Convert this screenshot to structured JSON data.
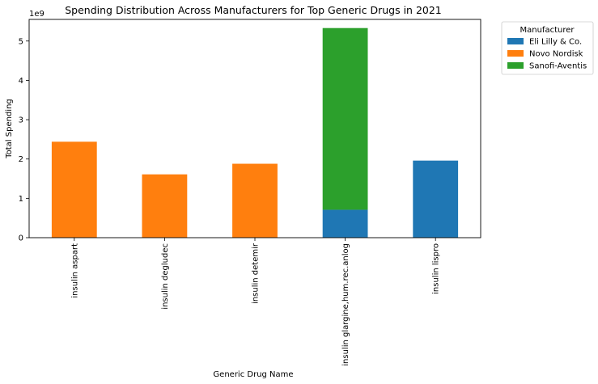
{
  "chart_data": {
    "type": "bar",
    "stacked": true,
    "title": "Spending Distribution Across Manufacturers for Top Generic Drugs in 2021",
    "xlabel": "Generic Drug Name",
    "ylabel": "Total Spending",
    "y_offset_label": "1e9",
    "ylim": [
      0,
      5.55
    ],
    "yticks": [
      "0",
      "1",
      "2",
      "3",
      "4",
      "5"
    ],
    "y_scale": 1000000000,
    "grid": false,
    "categories": [
      "insulin aspart",
      "insulin degludec",
      "insulin detemir",
      "insulin glargine,hum.rec.anlog",
      "insulin lispro"
    ],
    "series": [
      {
        "name": "Eli Lilly & Co.",
        "color": "#1f77b4",
        "values": [
          0,
          0,
          0,
          0.71,
          1.96
        ]
      },
      {
        "name": "Novo Nordisk",
        "color": "#ff7f0e",
        "values": [
          2.44,
          1.61,
          1.88,
          0,
          0
        ]
      },
      {
        "name": "Sanofi-Aventis",
        "color": "#2ca02c",
        "values": [
          0,
          0,
          0,
          4.62,
          0
        ]
      }
    ],
    "legend": {
      "title": "Manufacturer",
      "placement": "outside-top-right"
    }
  }
}
